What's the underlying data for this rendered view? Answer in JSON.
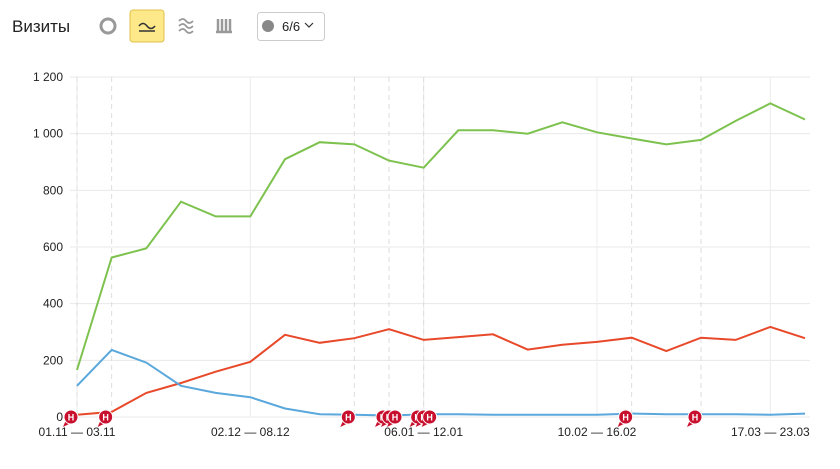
{
  "header": {
    "title": "Визиты",
    "segments_button": "6/6"
  },
  "chart_data": {
    "type": "line",
    "categories": [
      "01.11 — 03.11",
      null,
      null,
      null,
      null,
      "02.12 — 08.12",
      null,
      null,
      null,
      null,
      "06.01 — 12.01",
      null,
      null,
      null,
      null,
      "10.02 — 16.02",
      null,
      null,
      null,
      null,
      "17.03 — 23.03",
      null
    ],
    "series": [
      {
        "color": "#7dc24f",
        "values": [
          166,
          563,
          595,
          760,
          708,
          708,
          910,
          970,
          962,
          905,
          880,
          1012,
          1012,
          1000,
          1040,
          1005,
          983,
          962,
          978,
          1045,
          1107,
          1050
        ]
      },
      {
        "color": "#e8492a",
        "values": [
          8,
          18,
          85,
          120,
          160,
          195,
          290,
          262,
          278,
          310,
          272,
          282,
          292,
          238,
          255,
          265,
          280,
          233,
          280,
          272,
          318,
          278
        ]
      },
      {
        "color": "#5aa8dc",
        "values": [
          110,
          237,
          192,
          110,
          85,
          70,
          30,
          10,
          8,
          5,
          10,
          10,
          8,
          8,
          8,
          8,
          12,
          10,
          10,
          10,
          8,
          12
        ]
      }
    ],
    "ylim": [
      0,
      1200
    ],
    "yticks": [
      0,
      200,
      400,
      600,
      800,
      {
        "value": 1000,
        "label": "1 000"
      },
      {
        "value": 1200,
        "label": "1 200"
      }
    ],
    "grid": true,
    "annotations": [
      [
        "Н"
      ],
      [
        "Н"
      ],
      [],
      [],
      [],
      [],
      [],
      [],
      [
        "Н"
      ],
      [
        "Н",
        "Н",
        "Н"
      ],
      [
        "Н",
        "Н",
        "Н"
      ],
      [],
      [],
      [],
      [],
      [],
      [
        "Н"
      ],
      [],
      [
        "Н"
      ],
      [],
      [],
      []
    ]
  }
}
